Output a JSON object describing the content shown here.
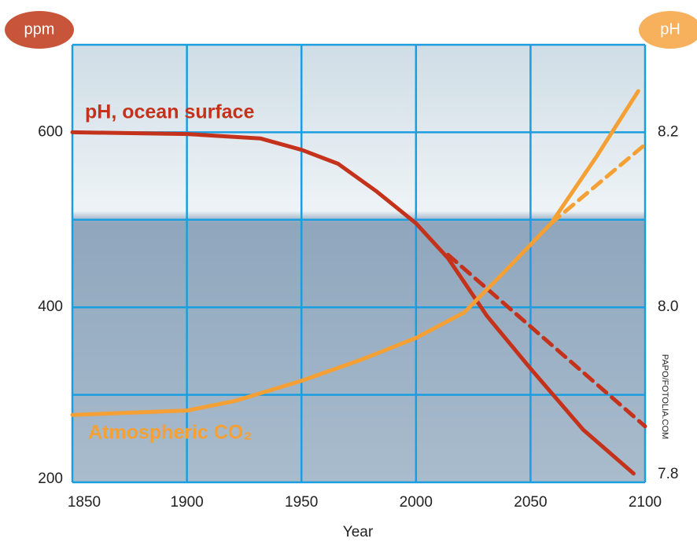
{
  "chart_data": {
    "type": "line",
    "ylabel": "ppm",
    "y2label": "pH",
    "xlabel": "Year",
    "credit": "PAPO/FOTOLIA.COM",
    "xlim": [
      1850,
      2100
    ],
    "xticks": [
      1850,
      1900,
      1950,
      2000,
      2050,
      2100
    ],
    "ylim": [
      200,
      700
    ],
    "yticks": [
      200,
      400,
      600
    ],
    "ygrid": [
      200,
      300,
      400,
      500,
      600,
      700
    ],
    "y2lim": [
      7.8,
      8.3
    ],
    "y2ticks": [
      7.8,
      {
        "value": 8.0,
        "label": "8.0"
      },
      8.2
    ],
    "grid": true,
    "grid_color": "#1a9ee0",
    "series": [
      {
        "name": "pH, ocean surface",
        "color": "#c4321b",
        "axis": "y2",
        "dash": false,
        "x": [
          1850,
          1900,
          1932,
          1950,
          1966,
          1983,
          2000,
          2014,
          2031,
          2050,
          2073,
          2095
        ],
        "values": [
          8.2,
          8.198,
          8.193,
          8.18,
          8.164,
          8.132,
          8.096,
          8.056,
          7.99,
          7.93,
          7.86,
          7.81
        ]
      },
      {
        "color": "#c4321b",
        "axis": "y2",
        "dash": true,
        "x": [
          2014,
          2100
        ],
        "values": [
          8.06,
          7.864
        ]
      },
      {
        "name": "Atmospheric CO₂",
        "color": "#f5a035",
        "dash": false,
        "x": [
          1850,
          1900,
          1921,
          1950,
          1976,
          2000,
          2021,
          2038,
          2059,
          2079,
          2097
        ],
        "values": [
          277,
          282,
          293,
          316,
          340,
          365,
          394,
          439,
          496,
          573,
          647
        ]
      },
      {
        "color": "#f5a035",
        "dash": true,
        "x": [
          2059,
          2100
        ],
        "values": [
          496,
          586
        ]
      }
    ]
  }
}
